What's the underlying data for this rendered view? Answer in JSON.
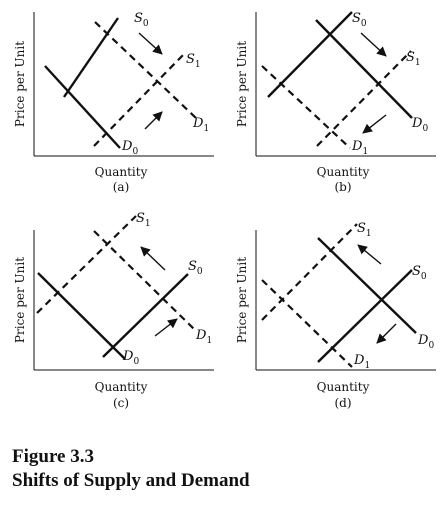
{
  "figure": {
    "number": "Figure 3.3",
    "title": "Shifts of Supply and Demand"
  },
  "axis": {
    "ylabel": "Price per Unit",
    "xlabel": "Quantity"
  },
  "panels": [
    {
      "id": "a",
      "label": "(a)",
      "solid": [
        {
          "role": "supply",
          "base": "S",
          "sub": "0"
        },
        {
          "role": "demand",
          "base": "D",
          "sub": "0"
        }
      ],
      "dashed": [
        {
          "role": "supply",
          "base": "S",
          "sub": "1"
        },
        {
          "role": "demand",
          "base": "D",
          "sub": "1"
        }
      ],
      "shift_arrows": [
        {
          "curve": "supply",
          "direction": "right"
        },
        {
          "curve": "demand",
          "direction": "right"
        }
      ]
    },
    {
      "id": "b",
      "label": "(b)",
      "solid": [
        {
          "role": "supply",
          "base": "S",
          "sub": "0"
        },
        {
          "role": "demand",
          "base": "D",
          "sub": "0"
        }
      ],
      "dashed": [
        {
          "role": "supply",
          "base": "S",
          "sub": "1"
        },
        {
          "role": "demand",
          "base": "D",
          "sub": "1"
        }
      ],
      "shift_arrows": [
        {
          "curve": "supply",
          "direction": "right"
        },
        {
          "curve": "demand",
          "direction": "left"
        }
      ]
    },
    {
      "id": "c",
      "label": "(c)",
      "solid": [
        {
          "role": "supply",
          "base": "S",
          "sub": "0"
        },
        {
          "role": "demand",
          "base": "D",
          "sub": "0"
        }
      ],
      "dashed": [
        {
          "role": "supply",
          "base": "S",
          "sub": "1"
        },
        {
          "role": "demand",
          "base": "D",
          "sub": "1"
        }
      ],
      "shift_arrows": [
        {
          "curve": "supply",
          "direction": "left"
        },
        {
          "curve": "demand",
          "direction": "right"
        }
      ]
    },
    {
      "id": "d",
      "label": "(d)",
      "solid": [
        {
          "role": "supply",
          "base": "S",
          "sub": "0"
        },
        {
          "role": "demand",
          "base": "D",
          "sub": "0"
        }
      ],
      "dashed": [
        {
          "role": "supply",
          "base": "S",
          "sub": "1"
        },
        {
          "role": "demand",
          "base": "D",
          "sub": "1"
        }
      ],
      "shift_arrows": [
        {
          "curve": "supply",
          "direction": "left"
        },
        {
          "curve": "demand",
          "direction": "left"
        }
      ]
    }
  ]
}
